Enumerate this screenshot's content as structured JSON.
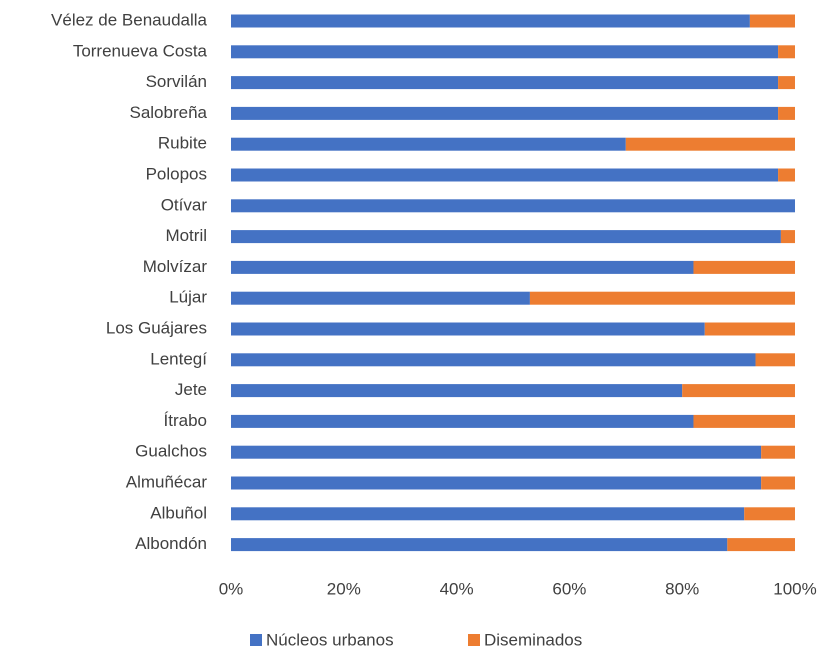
{
  "chart_data": {
    "type": "stacked_bar_horizontal",
    "categories": [
      "Vélez de Benaudalla",
      "Torrenueva Costa",
      "Sorvilán",
      "Salobreña",
      "Rubite",
      "Polopos",
      "Otívar",
      "Motril",
      "Molvízar",
      "Lújar",
      "Los Guájares",
      "Lentegí",
      "Jete",
      "Ítrabo",
      "Gualchos",
      "Almuñécar",
      "Albuñol",
      "Albondón"
    ],
    "series": [
      {
        "name": "Núcleos urbanos",
        "color": "#4472c4",
        "values": [
          92,
          97,
          97,
          97,
          70,
          97,
          100,
          97.5,
          82,
          53,
          84,
          93,
          80,
          82,
          94,
          94,
          91,
          88
        ]
      },
      {
        "name": "Diseminados",
        "color": "#ed7d31",
        "values": [
          8,
          3,
          3,
          3,
          30,
          3,
          0,
          2.5,
          18,
          47,
          16,
          7,
          20,
          18,
          6,
          6,
          9,
          12
        ]
      }
    ],
    "xlim": [
      0,
      100
    ],
    "xticks": [
      {
        "value": 0,
        "label": "0%"
      },
      {
        "value": 20,
        "label": "20%"
      },
      {
        "value": 40,
        "label": "40%"
      },
      {
        "value": 60,
        "label": "60%"
      },
      {
        "value": 80,
        "label": "80%"
      },
      {
        "value": 100,
        "label": "100%"
      }
    ],
    "grid": false,
    "legend": "bottom"
  }
}
